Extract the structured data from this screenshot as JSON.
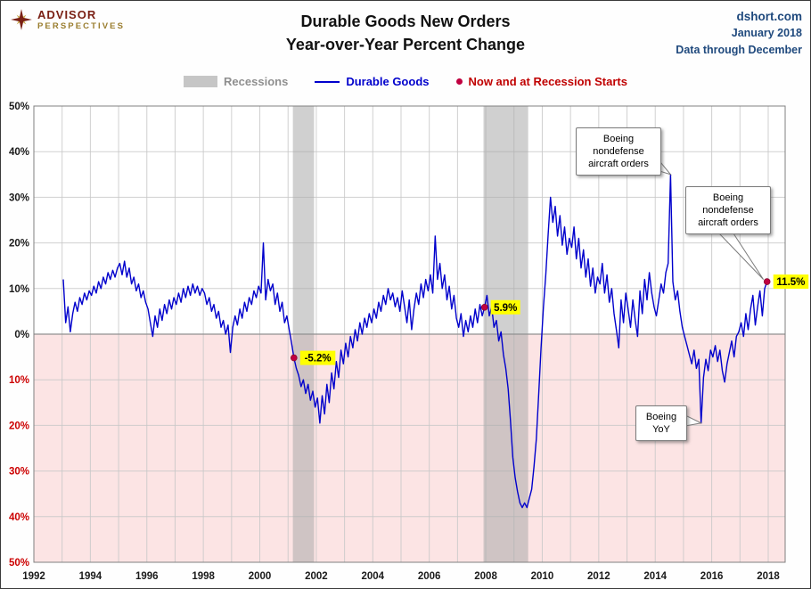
{
  "header": {
    "logo_line1": "ADVISOR",
    "logo_line2": "PERSPECTIVES",
    "title_line1": "Durable Goods New Orders",
    "title_line2": "Year-over-Year Percent Change",
    "source_site": "dshort.com",
    "source_date": "January 2018",
    "source_note": "Data through December"
  },
  "chart_data": {
    "type": "line",
    "title": "Durable Goods New Orders Year-over-Year Percent Change",
    "xlabel": "",
    "ylabel": "",
    "x_range": [
      1992,
      2018.6
    ],
    "y_range": [
      -50,
      50
    ],
    "grid": true,
    "legend_position": "top",
    "legend_entries": [
      "Recessions",
      "Durable Goods",
      "Now and at Recession Starts"
    ],
    "x_ticks": [
      {
        "v": 1992,
        "label": "1992"
      },
      {
        "v": 1994,
        "label": "1994"
      },
      {
        "v": 1996,
        "label": "1996"
      },
      {
        "v": 1998,
        "label": "1998"
      },
      {
        "v": 2000,
        "label": "2000"
      },
      {
        "v": 2002,
        "label": "2002"
      },
      {
        "v": 2004,
        "label": "2004"
      },
      {
        "v": 2006,
        "label": "2006"
      },
      {
        "v": 2008,
        "label": "2008"
      },
      {
        "v": 2010,
        "label": "2010"
      },
      {
        "v": 2012,
        "label": "2012"
      },
      {
        "v": 2014,
        "label": "2014"
      },
      {
        "v": 2016,
        "label": "2016"
      },
      {
        "v": 2018,
        "label": "2018"
      }
    ],
    "y_ticks": [
      {
        "v": 50,
        "label": "50%"
      },
      {
        "v": 40,
        "label": "40%"
      },
      {
        "v": 30,
        "label": "30%"
      },
      {
        "v": 20,
        "label": "20%"
      },
      {
        "v": 10,
        "label": "10%"
      },
      {
        "v": 0,
        "label": "0%"
      },
      {
        "v": -10,
        "label": "10%"
      },
      {
        "v": -20,
        "label": "20%"
      },
      {
        "v": -30,
        "label": "30%"
      },
      {
        "v": -40,
        "label": "40%"
      },
      {
        "v": -50,
        "label": "50%"
      }
    ],
    "recessions": [
      {
        "start": 2001.17,
        "end": 2001.92
      },
      {
        "start": 2007.92,
        "end": 2009.5
      }
    ],
    "series": [
      {
        "name": "Durable Goods",
        "start_year": 1993,
        "interval_months": 1,
        "values": [
          12.0,
          2.5,
          6.0,
          0.5,
          4.5,
          7.0,
          5.0,
          8.0,
          6.5,
          9.0,
          7.5,
          9.5,
          8.5,
          10.5,
          9.0,
          11.5,
          10.0,
          12.5,
          11.0,
          13.5,
          12.0,
          14.0,
          12.5,
          14.5,
          15.5,
          13.0,
          16.0,
          12.5,
          14.5,
          11.0,
          12.5,
          9.5,
          11.0,
          8.0,
          9.5,
          7.0,
          5.5,
          2.5,
          -0.5,
          4.0,
          1.5,
          5.5,
          3.0,
          6.5,
          4.5,
          7.5,
          5.5,
          8.0,
          6.5,
          9.0,
          7.0,
          10.0,
          8.0,
          10.5,
          8.5,
          11.0,
          9.0,
          10.5,
          8.5,
          10.0,
          9.0,
          6.5,
          8.0,
          5.0,
          6.5,
          3.5,
          5.0,
          1.5,
          3.0,
          0.0,
          2.0,
          -4.0,
          1.5,
          4.0,
          2.0,
          5.5,
          3.5,
          7.0,
          5.0,
          8.0,
          6.5,
          9.5,
          8.0,
          10.5,
          9.0,
          20.0,
          7.5,
          12.0,
          9.5,
          11.0,
          6.5,
          9.0,
          5.0,
          7.0,
          2.5,
          4.0,
          1.0,
          -2.0,
          -5.2,
          -7.5,
          -9.0,
          -11.5,
          -10.0,
          -13.0,
          -11.0,
          -14.5,
          -12.5,
          -16.0,
          -14.0,
          -19.5,
          -13.5,
          -17.5,
          -11.0,
          -15.0,
          -8.5,
          -12.0,
          -6.0,
          -9.5,
          -3.5,
          -6.5,
          -2.0,
          -5.0,
          -0.5,
          -3.0,
          1.0,
          -1.5,
          2.5,
          0.0,
          3.5,
          1.5,
          4.5,
          2.5,
          5.5,
          3.5,
          7.0,
          5.0,
          8.5,
          6.5,
          10.0,
          7.5,
          9.0,
          6.0,
          8.0,
          5.0,
          9.5,
          6.0,
          2.5,
          7.5,
          1.0,
          5.5,
          9.0,
          6.5,
          11.0,
          8.0,
          12.0,
          9.5,
          13.0,
          9.0,
          21.5,
          12.0,
          15.5,
          10.0,
          13.0,
          7.5,
          10.5,
          5.5,
          8.5,
          3.5,
          1.5,
          4.5,
          -0.5,
          3.0,
          0.5,
          4.0,
          1.5,
          5.5,
          2.5,
          6.5,
          4.0,
          5.9,
          8.5,
          4.0,
          6.0,
          1.5,
          3.0,
          -1.5,
          0.5,
          -4.5,
          -7.5,
          -12.0,
          -19.0,
          -27.0,
          -31.5,
          -34.5,
          -37.0,
          -38.0,
          -37.0,
          -38.0,
          -36.0,
          -34.0,
          -29.0,
          -23.0,
          -13.0,
          -3.0,
          6.0,
          13.0,
          22.0,
          30.0,
          24.5,
          28.0,
          21.5,
          26.0,
          19.5,
          23.5,
          17.5,
          21.0,
          19.0,
          23.5,
          16.5,
          21.0,
          14.5,
          18.5,
          12.5,
          16.5,
          10.5,
          14.5,
          9.0,
          12.5,
          11.0,
          15.5,
          9.0,
          13.0,
          7.0,
          10.0,
          4.5,
          1.0,
          -3.0,
          7.5,
          2.5,
          9.0,
          5.5,
          1.5,
          7.5,
          3.0,
          -0.5,
          9.5,
          4.5,
          12.0,
          7.5,
          13.5,
          9.0,
          6.0,
          4.0,
          7.5,
          11.0,
          9.0,
          13.5,
          15.5,
          35.0,
          11.5,
          7.5,
          9.5,
          5.0,
          1.5,
          -0.5,
          -2.5,
          -4.5,
          -6.5,
          -3.5,
          -7.5,
          -5.5,
          -19.5,
          -9.5,
          -5.5,
          -8.0,
          -3.5,
          -5.0,
          -2.5,
          -6.0,
          -3.5,
          -8.0,
          -10.5,
          -6.5,
          -4.0,
          -1.5,
          -5.0,
          -0.5,
          0.5,
          2.5,
          -0.5,
          4.5,
          1.0,
          5.5,
          8.5,
          2.0,
          6.0,
          9.5,
          4.0,
          10.0,
          11.5
        ]
      }
    ],
    "markers": [
      {
        "x": 2001.208,
        "y": -5.2,
        "label": "-5.2%"
      },
      {
        "x": 2007.958,
        "y": 5.9,
        "label": "5.9%"
      },
      {
        "x": 2017.958,
        "y": 11.5,
        "label": "11.5%"
      }
    ],
    "annotations": [
      {
        "lines": [
          "Boeing",
          "nondefense",
          "aircraft orders"
        ],
        "target": {
          "x": 2014.542,
          "y": 35
        }
      },
      {
        "lines": [
          "Boeing",
          "nondefense",
          "aircraft orders"
        ],
        "target": {
          "x": 2017.83,
          "y": 12
        }
      },
      {
        "lines": [
          "Boeing",
          "YoY"
        ],
        "target": {
          "x": 2015.625,
          "y": -19.5
        }
      }
    ],
    "colors": {
      "line": "#0000CC",
      "marker": "#C00040",
      "recession_band": "#A9A9A9",
      "negative_area": "#FCE4E4",
      "grid": "#C8C8C8",
      "marker_label_bg": "#FFFF00",
      "negative_tick": "#CC0000"
    }
  }
}
